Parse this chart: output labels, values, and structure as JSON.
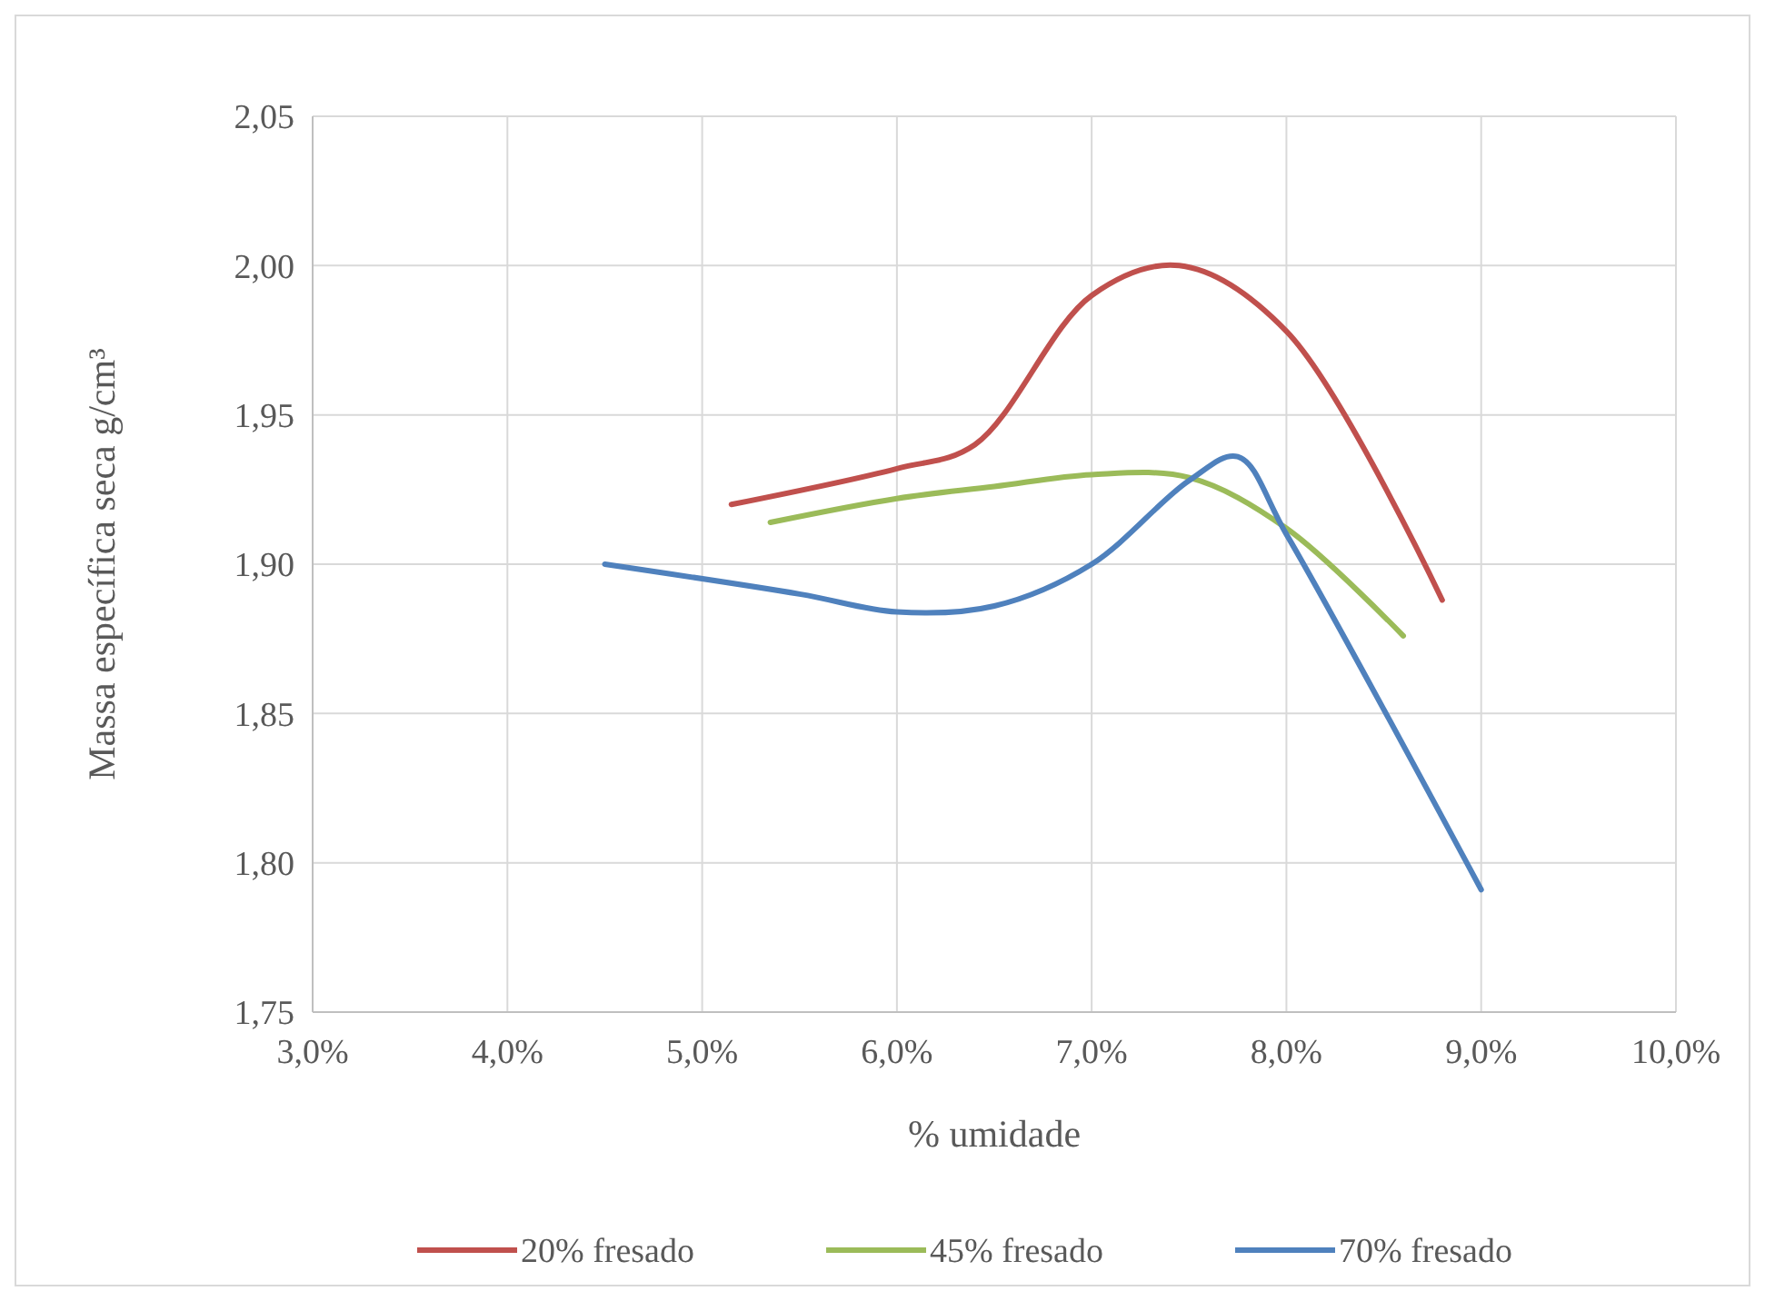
{
  "chart_data": {
    "type": "line",
    "xlabel": "% umidade",
    "ylabel": "Massa específica seca g/cm³",
    "xlim": [
      3,
      10
    ],
    "xticks": [
      {
        "value": 3,
        "label": "3,0%"
      },
      {
        "value": 4,
        "label": "4,0%"
      },
      {
        "value": 5,
        "label": "5,0%"
      },
      {
        "value": 6,
        "label": "6,0%"
      },
      {
        "value": 7,
        "label": "7,0%"
      },
      {
        "value": 8,
        "label": "8,0%"
      },
      {
        "value": 9,
        "label": "9,0%"
      },
      {
        "value": 10,
        "label": "10,0%"
      }
    ],
    "ylim": [
      1.75,
      2.05
    ],
    "yticks": [
      {
        "value": 1.75,
        "label": "1,75"
      },
      {
        "value": 1.8,
        "label": "1,80"
      },
      {
        "value": 1.85,
        "label": "1,85"
      },
      {
        "value": 1.9,
        "label": "1,90"
      },
      {
        "value": 1.95,
        "label": "1,95"
      },
      {
        "value": 2.0,
        "label": "2,00"
      },
      {
        "value": 2.05,
        "label": "2,05"
      }
    ],
    "grid": true,
    "legend": "bottom",
    "marker": "none",
    "line_style": "solid",
    "series": [
      {
        "name": "20% fresado",
        "color": "#c0504d",
        "x": [
          5.15,
          6.0,
          6.4,
          7.0,
          7.45,
          8.0,
          8.8
        ],
        "values": [
          1.92,
          1.932,
          1.94,
          1.99,
          2.0,
          1.978,
          1.888
        ]
      },
      {
        "name": "45% fresado",
        "color": "#9bbb59",
        "x": [
          5.35,
          6.0,
          6.5,
          7.0,
          7.5,
          8.0,
          8.6
        ],
        "values": [
          1.914,
          1.922,
          1.926,
          1.93,
          1.929,
          1.912,
          1.876
        ]
      },
      {
        "name": "70% fresado",
        "color": "#4f81bd",
        "x": [
          4.5,
          5.5,
          6.0,
          6.5,
          7.0,
          7.5,
          7.75,
          8.0,
          9.0
        ],
        "values": [
          1.9,
          1.89,
          1.884,
          1.886,
          1.9,
          1.928,
          1.936,
          1.91,
          1.791
        ]
      }
    ]
  }
}
